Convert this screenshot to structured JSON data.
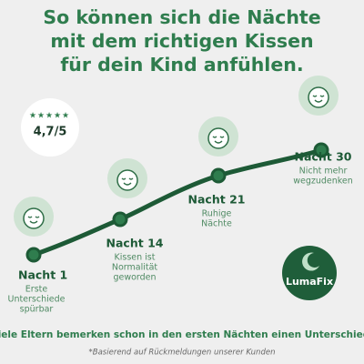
{
  "title": [
    "So können sich die Nächte",
    "mit dem richtigen Kissen",
    "für dein Kind anfühlen."
  ],
  "rating": "4,7/5",
  "milestones": [
    {
      "title": "Nacht 1",
      "lines": [
        "Erste",
        "Unterschiede",
        "spürbar"
      ]
    },
    {
      "title": "Nacht 14",
      "lines": [
        "Kissen ist",
        "Normalität",
        "geworden"
      ]
    },
    {
      "title": "Nacht 21",
      "lines": [
        "Ruhige",
        "Nächte"
      ]
    },
    {
      "title": "Nacht 30",
      "lines": [
        "Nicht mehr",
        "wegzudenken"
      ]
    }
  ],
  "brand": "LumaFix",
  "footer": "Viele Eltern bemerken schon in den ersten Nächten einen Unterschied.",
  "note": "*Basierend auf Rückmeldungen unserer Kunden"
}
